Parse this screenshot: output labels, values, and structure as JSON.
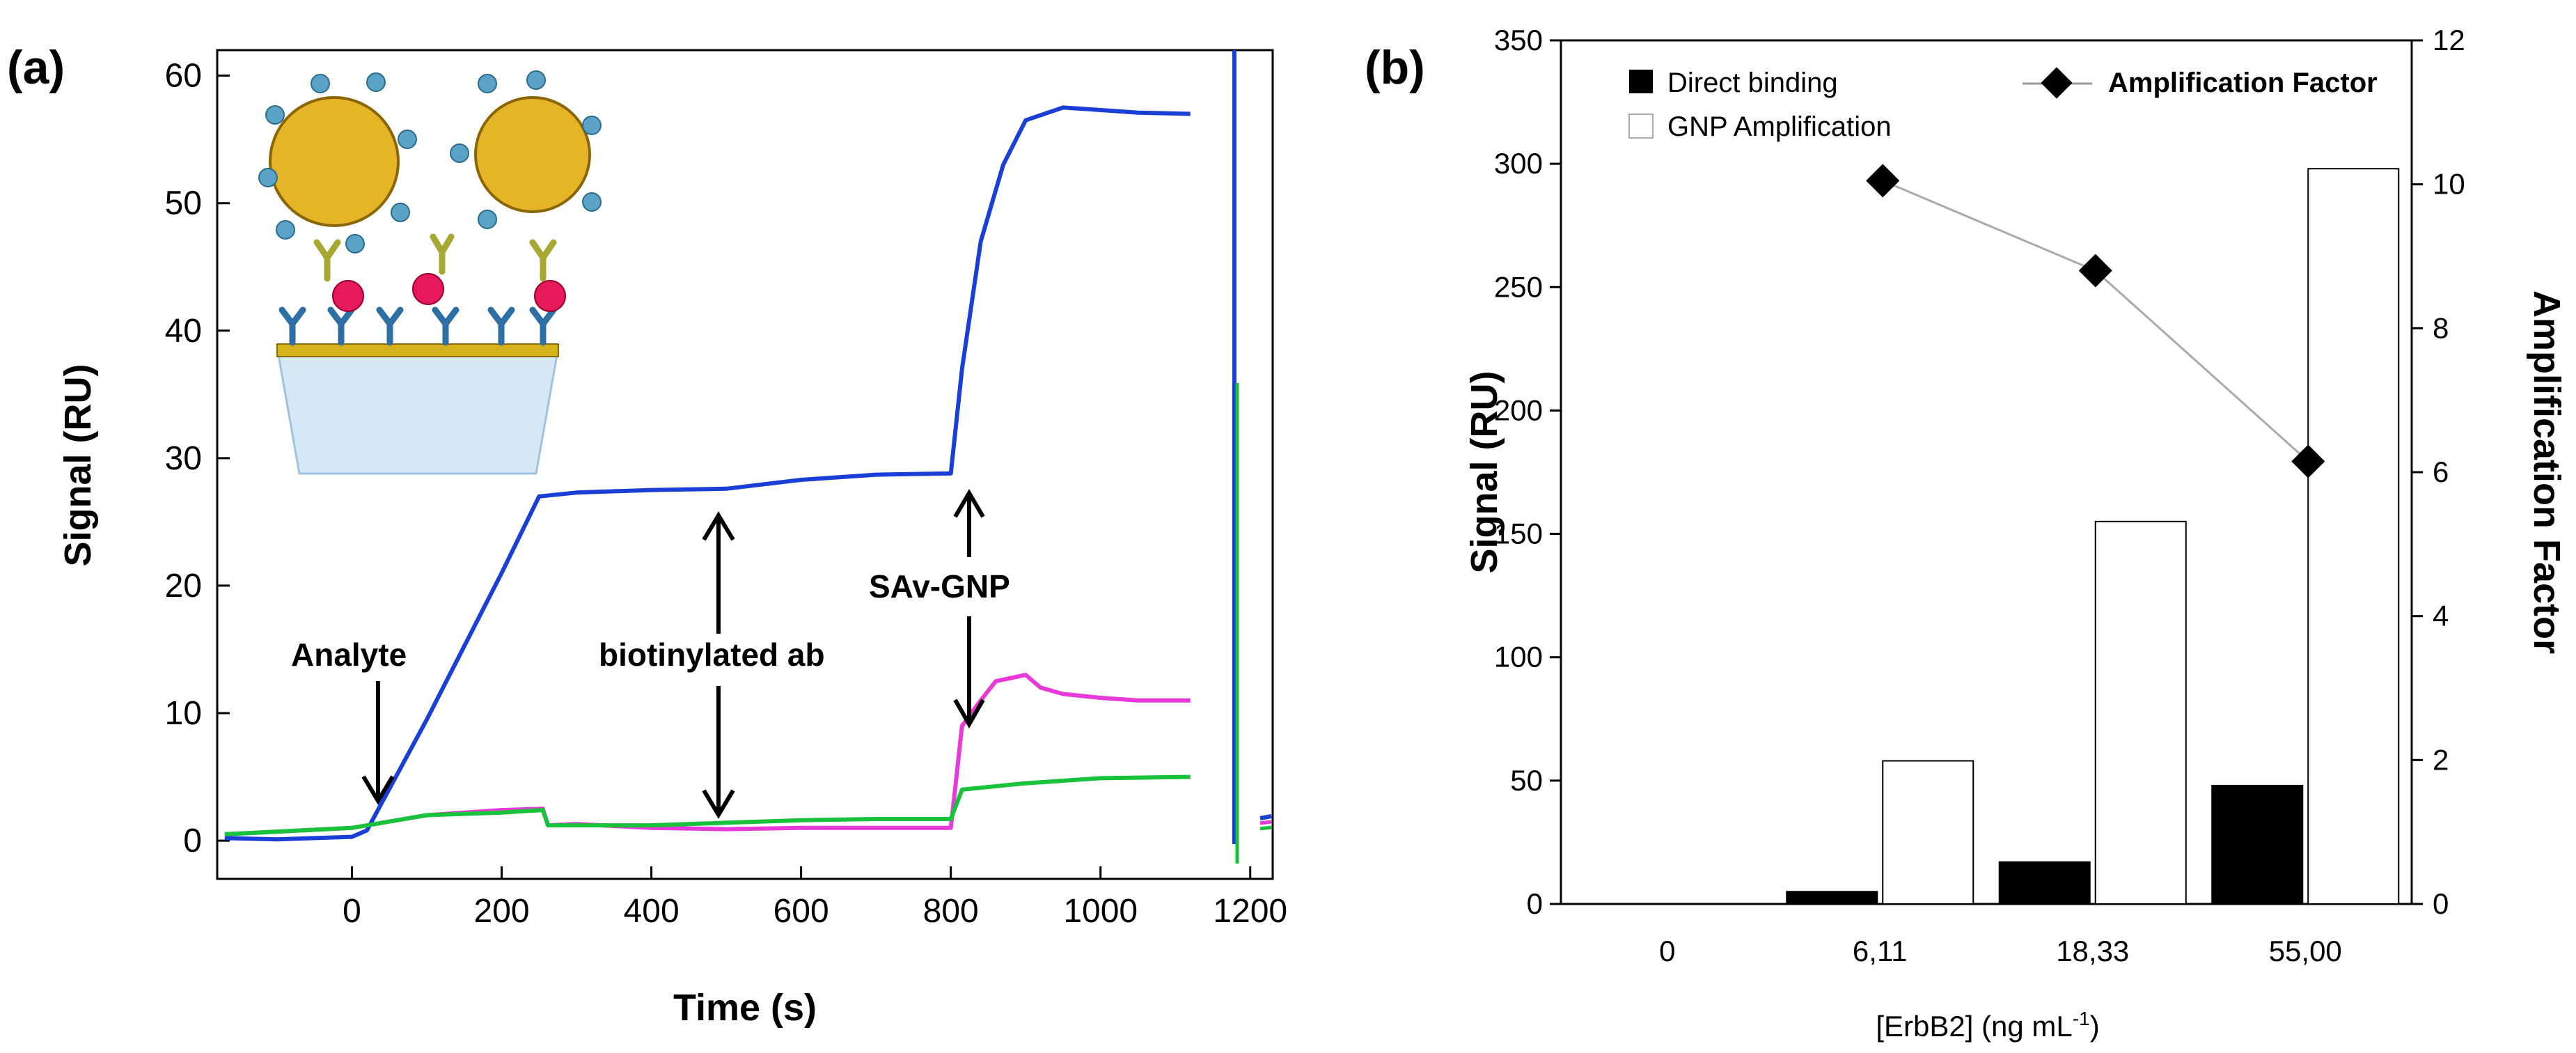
{
  "panel_a": {
    "label": "(a)",
    "annotations": {
      "analyte": "Analyte",
      "biotin_ab": "biotinylated ab",
      "sav_gnp": "SAv-GNP"
    }
  },
  "panel_b": {
    "label": "(b)"
  },
  "chart_data": [
    {
      "type": "line",
      "title": "",
      "xlabel": "Time (s)",
      "ylabel": "Signal (RU)",
      "xlim": [
        -180,
        1230
      ],
      "ylim": [
        -3,
        62
      ],
      "x_ticks": [
        "0",
        "200",
        "400",
        "600",
        "800",
        "1000",
        "1200"
      ],
      "x_tick_values": [
        0,
        200,
        400,
        600,
        800,
        1000,
        1200
      ],
      "y_ticks": [
        "0",
        "10",
        "20",
        "30",
        "40",
        "50",
        "60"
      ],
      "y_tick_values": [
        0,
        10,
        20,
        30,
        40,
        50,
        60
      ],
      "series": [
        {
          "name": "sensorgram-blue",
          "color": "#1a3fd6",
          "points": [
            [
              -170,
              0.2
            ],
            [
              -100,
              0.1
            ],
            [
              -50,
              0.2
            ],
            [
              0,
              0.3
            ],
            [
              20,
              0.8
            ],
            [
              100,
              9.5
            ],
            [
              200,
              21
            ],
            [
              250,
              27
            ],
            [
              300,
              27.3
            ],
            [
              400,
              27.5
            ],
            [
              500,
              27.6
            ],
            [
              600,
              28.3
            ],
            [
              700,
              28.7
            ],
            [
              800,
              28.8
            ],
            [
              815,
              37
            ],
            [
              840,
              47
            ],
            [
              870,
              53
            ],
            [
              900,
              56.5
            ],
            [
              950,
              57.5
            ],
            [
              1000,
              57.3
            ],
            [
              1050,
              57.1
            ],
            [
              1120,
              57
            ]
          ]
        },
        {
          "name": "sensorgram-magenta",
          "color": "#e83ad8",
          "points": [
            [
              -170,
              0.5
            ],
            [
              0,
              1
            ],
            [
              100,
              2
            ],
            [
              200,
              2.4
            ],
            [
              255,
              2.5
            ],
            [
              262,
              1.2
            ],
            [
              300,
              1.3
            ],
            [
              400,
              1
            ],
            [
              500,
              0.9
            ],
            [
              600,
              1
            ],
            [
              700,
              1
            ],
            [
              800,
              1
            ],
            [
              815,
              9
            ],
            [
              840,
              11
            ],
            [
              860,
              12.5
            ],
            [
              900,
              13
            ],
            [
              920,
              12
            ],
            [
              950,
              11.5
            ],
            [
              1000,
              11.2
            ],
            [
              1050,
              11
            ],
            [
              1120,
              11
            ]
          ]
        },
        {
          "name": "sensorgram-green",
          "color": "#18c23a",
          "points": [
            [
              -170,
              0.5
            ],
            [
              0,
              1
            ],
            [
              100,
              2
            ],
            [
              200,
              2.2
            ],
            [
              255,
              2.4
            ],
            [
              262,
              1.2
            ],
            [
              300,
              1.2
            ],
            [
              400,
              1.2
            ],
            [
              500,
              1.4
            ],
            [
              600,
              1.6
            ],
            [
              700,
              1.7
            ],
            [
              800,
              1.7
            ],
            [
              815,
              4
            ],
            [
              900,
              4.5
            ],
            [
              1000,
              4.9
            ],
            [
              1120,
              5
            ]
          ]
        }
      ]
    },
    {
      "type": "bar",
      "title": "",
      "xlabel": "[ErbB2] (ng mL-1)",
      "xlabel_main": "[ErbB2] (ng mL",
      "xlabel_sup": "-1",
      "xlabel_end": ")",
      "ylabel": "Signal (RU)",
      "ylabel_right": "Amplification Factor",
      "categories": [
        "0",
        "6,11",
        "18,33",
        "55,00"
      ],
      "ylim": [
        0,
        350
      ],
      "y_ticks": [
        "0",
        "50",
        "100",
        "150",
        "200",
        "250",
        "300",
        "350"
      ],
      "y_tick_values": [
        0,
        50,
        100,
        150,
        200,
        250,
        300,
        350
      ],
      "y2lim": [
        0,
        12
      ],
      "y2_ticks": [
        "0",
        "2",
        "4",
        "6",
        "8",
        "10",
        "12"
      ],
      "y2_tick_values": [
        0,
        2,
        4,
        6,
        8,
        10,
        12
      ],
      "legend": {
        "direct": "Direct binding",
        "gnp": "GNP Amplification",
        "factor": "Amplification Factor"
      },
      "series": [
        {
          "name": "Direct binding",
          "color": "#000000",
          "values": [
            0,
            5,
            17,
            48
          ]
        },
        {
          "name": "GNP Amplification",
          "color": "#ffffff",
          "values": [
            0,
            58,
            155,
            298
          ]
        }
      ],
      "line_series": {
        "name": "Amplification Factor",
        "axis": "right",
        "values": [
          null,
          10.05,
          8.8,
          6.15
        ]
      }
    }
  ]
}
